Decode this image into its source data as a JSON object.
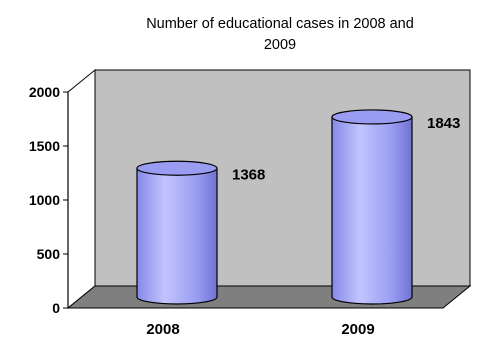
{
  "chart_data": {
    "type": "bar",
    "title_lines": [
      "Number of educational cases in 2008 and",
      "2009"
    ],
    "categories": [
      "2008",
      "2009"
    ],
    "values": [
      1368,
      1843
    ],
    "data_labels": [
      "1368",
      "1843"
    ],
    "yticks": [
      "0",
      "500",
      "1000",
      "1500",
      "2000"
    ],
    "ylim": [
      0,
      2000
    ],
    "grid": false,
    "legend": "none",
    "bar_shape": "cylinder",
    "colors": {
      "bar_fill": "#9a9cf2",
      "bar_highlight": "#c2c4ff",
      "bar_shadow": "#6f72cf",
      "bar_outline": "#000000",
      "back_wall": "#c0c0c0",
      "floor": "#7f7f7f"
    }
  }
}
